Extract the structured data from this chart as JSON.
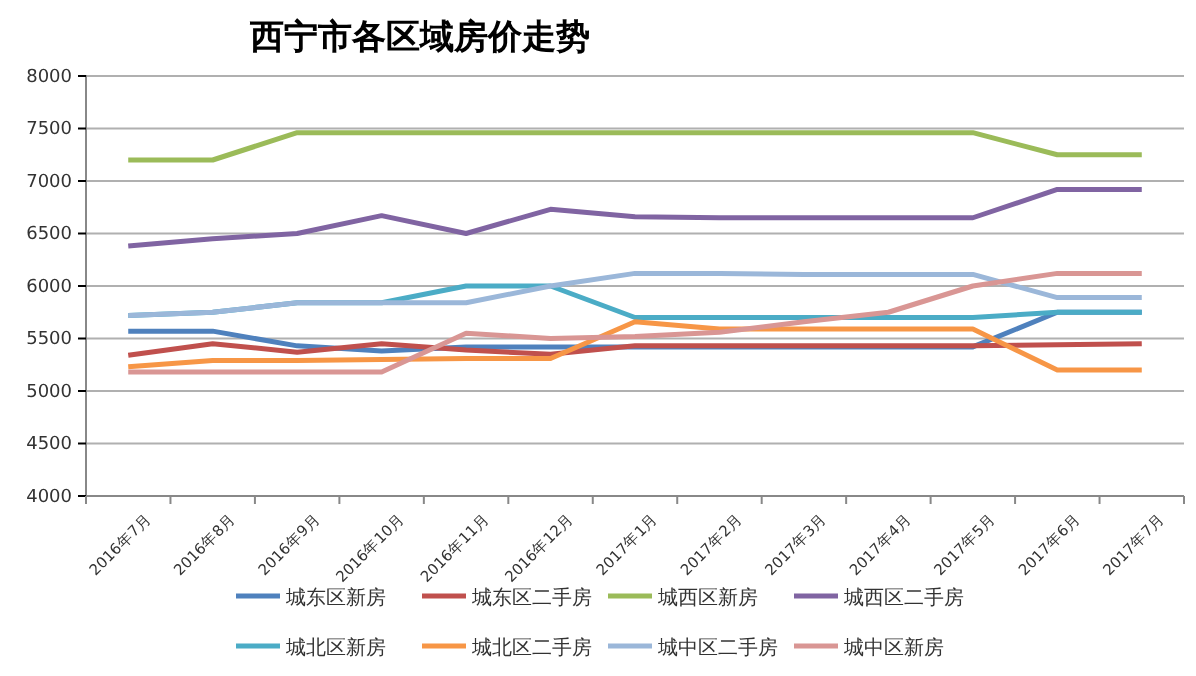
{
  "chart_data": {
    "type": "line",
    "title": "西宁市各区域房价走势",
    "categories": [
      "2016年7月",
      "2016年8月",
      "2016年9月",
      "2016年10月",
      "2016年11月",
      "2016年12月",
      "2017年1月",
      "2017年2月",
      "2017年3月",
      "2017年4月",
      "2017年5月",
      "2017年6月",
      "2017年7月"
    ],
    "series": [
      {
        "name": "城东区新房",
        "color": "#4f81bd",
        "values": [
          5570,
          5570,
          5430,
          5380,
          5420,
          5420,
          5420,
          5420,
          5420,
          5420,
          5420,
          5750,
          5750
        ]
      },
      {
        "name": "城东区二手房",
        "color": "#c0504d",
        "values": [
          5340,
          5450,
          5370,
          5450,
          5390,
          5350,
          5430,
          5430,
          5430,
          5430,
          5430,
          5440,
          5450
        ]
      },
      {
        "name": "城西区新房",
        "color": "#9bbb59",
        "values": [
          7200,
          7200,
          7460,
          7460,
          7460,
          7460,
          7460,
          7460,
          7460,
          7460,
          7460,
          7250,
          7250
        ]
      },
      {
        "name": "城西区二手房",
        "color": "#8064a2",
        "values": [
          6380,
          6450,
          6500,
          6670,
          6500,
          6730,
          6660,
          6650,
          6650,
          6650,
          6650,
          6920,
          6920
        ]
      },
      {
        "name": "城北区新房",
        "color": "#4bacc6",
        "values": [
          5720,
          5750,
          5840,
          5840,
          6000,
          6000,
          5700,
          5700,
          5700,
          5700,
          5700,
          5750,
          5750
        ]
      },
      {
        "name": "城北区二手房",
        "color": "#f79646",
        "values": [
          5230,
          5290,
          5290,
          5300,
          5310,
          5310,
          5660,
          5590,
          5590,
          5590,
          5590,
          5200,
          5200
        ]
      },
      {
        "name": "城中区二手房",
        "color": "#9bb7d9",
        "values": [
          5720,
          5750,
          5840,
          5840,
          5840,
          6000,
          6120,
          6120,
          6110,
          6110,
          6110,
          5890,
          5890
        ]
      },
      {
        "name": "城中区新房",
        "color": "#d99694",
        "values": [
          5180,
          5180,
          5180,
          5180,
          5550,
          5500,
          5520,
          5560,
          5660,
          5750,
          6000,
          6120,
          6120
        ]
      }
    ],
    "ylim": [
      4000,
      8000
    ],
    "yticks": [
      4000,
      4500,
      5000,
      5500,
      6000,
      6500,
      7000,
      7500,
      8000
    ],
    "grid": "y",
    "legend": "bottom",
    "marker": "none",
    "line_style": "solid"
  }
}
